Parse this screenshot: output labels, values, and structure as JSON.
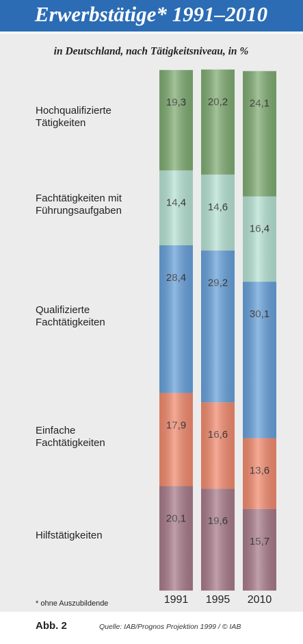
{
  "chart_data": {
    "type": "stacked-bar",
    "title": "Erwerbstätige* 1991–2010",
    "subtitle": "in Deutschland, nach Tätigkeitsniveau, in %",
    "categories": [
      "1991",
      "1995",
      "2010"
    ],
    "series": [
      {
        "name": "Hochqualifizierte Tätigkeiten",
        "color": "#7fab72",
        "values": [
          19.3,
          20.2,
          24.1
        ],
        "value_labels": [
          "19,3",
          "20,2",
          "24,1"
        ]
      },
      {
        "name": "Fachtätigkeiten mit Führungsaufgaben",
        "color": "#b6e2d3",
        "values": [
          14.4,
          14.6,
          16.4
        ],
        "value_labels": [
          "14,4",
          "14,6",
          "16,4"
        ]
      },
      {
        "name": "Qualifizierte Fachtätigkeiten",
        "color": "#66a0da",
        "values": [
          28.4,
          29.2,
          30.1
        ],
        "value_labels": [
          "28,4",
          "29,2",
          "30,1"
        ]
      },
      {
        "name": "Einfache Fachtätigkeiten",
        "color": "#f28a6e",
        "values": [
          17.9,
          16.6,
          13.6
        ],
        "value_labels": [
          "17,9",
          "16,6",
          "13,6"
        ]
      },
      {
        "name": "Hilfstätigkeiten",
        "color": "#a87a8a",
        "values": [
          20.1,
          19.6,
          15.7
        ],
        "value_labels": [
          "20,1",
          "19,6",
          "15,7"
        ]
      }
    ],
    "footnote": "* ohne Auszubildende",
    "figure_label": "Abb. 2",
    "source": "Quelle: IAB/Prognos Projektion 1999 / © IAB"
  }
}
